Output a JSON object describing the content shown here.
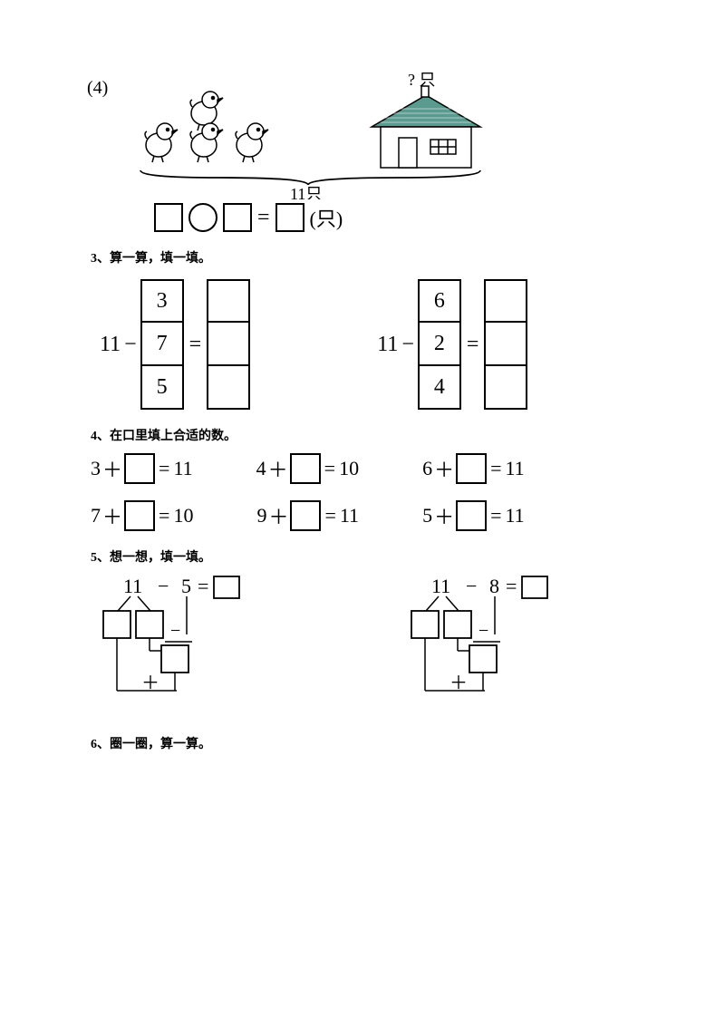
{
  "problem4": {
    "number_label": "(4)",
    "question_mark": "? 只",
    "total_label": "11只",
    "unit_suffix": "(只)",
    "equals": "=",
    "chick_count": 4,
    "house_roof_color": "#5a9a8f",
    "house_wall_color": "#ffffff",
    "line_color": "#000000"
  },
  "problem3": {
    "title": "3、算一算，填一填。",
    "left": {
      "prefix_num": "11",
      "minus": "−",
      "equals": "=",
      "col1": [
        "3",
        "7",
        "5"
      ]
    },
    "right": {
      "prefix_num": "11",
      "minus": "−",
      "equals": "=",
      "col1": [
        "6",
        "2",
        "4"
      ]
    },
    "cell_size": 48,
    "font_size": 24,
    "border_color": "#000000"
  },
  "problem4b": {
    "title": "4、在口里填上合适的数。",
    "rows": [
      [
        {
          "a": "3",
          "op": "＋",
          "eq": "=",
          "r": "11"
        },
        {
          "a": "4",
          "op": "＋",
          "eq": "=",
          "r": "10"
        },
        {
          "a": "6",
          "op": "＋",
          "eq": "=",
          "r": "11"
        }
      ],
      [
        {
          "a": "7",
          "op": "＋",
          "eq": "=",
          "r": "10"
        },
        {
          "a": "9",
          "op": "＋",
          "eq": "=",
          "r": "11"
        },
        {
          "a": "5",
          "op": "＋",
          "eq": "=",
          "r": "11"
        }
      ]
    ],
    "font_size": 22,
    "box_size": 34
  },
  "problem5": {
    "title": "5、想一想，填一填。",
    "left": {
      "a": "11",
      "minus": "−",
      "b": "5",
      "eq": "="
    },
    "right": {
      "a": "11",
      "minus": "−",
      "b": "8",
      "eq": "="
    },
    "sub_minus": "−",
    "sub_plus": "＋",
    "box_size": 30
  },
  "problem6": {
    "title": "6、圈一圈，算一算。"
  }
}
